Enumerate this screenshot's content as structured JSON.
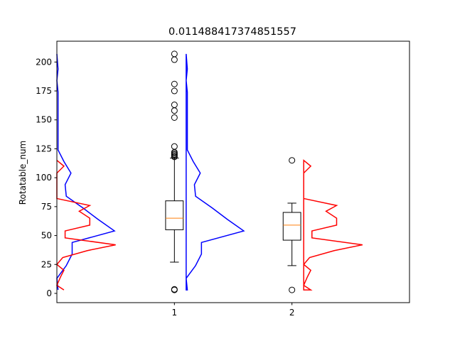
{
  "chart_data": {
    "type": "box",
    "title": "0.011488417374851557",
    "xlabel": "",
    "ylabel": "Rotatable_num",
    "xlim": [
      0,
      3
    ],
    "ylim": [
      -8,
      218
    ],
    "yticks": [
      0,
      25,
      50,
      75,
      100,
      125,
      150,
      175,
      200
    ],
    "categories": [
      "1",
      "2"
    ],
    "boxes": [
      {
        "name": "1",
        "position": 1,
        "whisker_low": 27,
        "q1": 55,
        "median": 65,
        "q3": 80,
        "whisker_high": 117,
        "fliers": [
          3,
          3.5,
          118,
          119,
          120,
          121,
          122,
          127,
          152,
          158,
          163,
          175,
          181,
          202,
          207
        ]
      },
      {
        "name": "2",
        "position": 2,
        "whisker_low": 24,
        "q1": 46,
        "median": 59,
        "q3": 70,
        "whisker_high": 78,
        "fliers": [
          3,
          115
        ]
      }
    ],
    "density_series": [
      {
        "color": "#0000ff",
        "anchor": 0,
        "direction": 1,
        "closed": false,
        "points": [
          [
            0.01,
            3
          ],
          [
            0.0,
            13
          ],
          [
            0.08,
            24
          ],
          [
            0.13,
            34
          ],
          [
            0.13,
            44
          ],
          [
            0.49,
            54
          ],
          [
            0.35,
            64
          ],
          [
            0.22,
            74
          ],
          [
            0.08,
            84
          ],
          [
            0.07,
            94
          ],
          [
            0.12,
            104
          ],
          [
            0.06,
            114
          ],
          [
            0.01,
            124
          ],
          [
            0.01,
            134
          ],
          [
            0.01,
            144
          ],
          [
            0.01,
            154
          ],
          [
            0.01,
            164
          ],
          [
            0.01,
            174
          ],
          [
            0.0,
            184
          ],
          [
            0.01,
            194
          ],
          [
            0.0,
            207
          ]
        ]
      },
      {
        "color": "#ff0000",
        "anchor": 0,
        "direction": 1,
        "closed": false,
        "points": [
          [
            0.06,
            3
          ],
          [
            0.0,
            7
          ],
          [
            0.03,
            14
          ],
          [
            0.06,
            20
          ],
          [
            0.0,
            25
          ],
          [
            0.05,
            31
          ],
          [
            0.26,
            37
          ],
          [
            0.5,
            42
          ],
          [
            0.07,
            48
          ],
          [
            0.07,
            54
          ],
          [
            0.28,
            59
          ],
          [
            0.28,
            65
          ],
          [
            0.19,
            71
          ],
          [
            0.28,
            76
          ],
          [
            0.0,
            82
          ],
          [
            0.0,
            104
          ],
          [
            0.06,
            110
          ],
          [
            0.0,
            115
          ]
        ]
      },
      {
        "color": "#0000ff",
        "anchor": 1.1,
        "direction": 1,
        "closed": true,
        "points": [
          [
            0.01,
            3
          ],
          [
            0.0,
            13
          ],
          [
            0.08,
            24
          ],
          [
            0.13,
            34
          ],
          [
            0.13,
            44
          ],
          [
            0.49,
            54
          ],
          [
            0.35,
            64
          ],
          [
            0.22,
            74
          ],
          [
            0.08,
            84
          ],
          [
            0.07,
            94
          ],
          [
            0.12,
            104
          ],
          [
            0.06,
            114
          ],
          [
            0.01,
            124
          ],
          [
            0.01,
            134
          ],
          [
            0.01,
            144
          ],
          [
            0.01,
            154
          ],
          [
            0.01,
            164
          ],
          [
            0.01,
            174
          ],
          [
            0.0,
            184
          ],
          [
            0.01,
            194
          ],
          [
            0.0,
            207
          ]
        ]
      },
      {
        "color": "#ff0000",
        "anchor": 2.1,
        "direction": 1,
        "closed": true,
        "points": [
          [
            0.06,
            3
          ],
          [
            0.0,
            7
          ],
          [
            0.03,
            14
          ],
          [
            0.06,
            20
          ],
          [
            0.0,
            25
          ],
          [
            0.05,
            31
          ],
          [
            0.26,
            37
          ],
          [
            0.5,
            42
          ],
          [
            0.07,
            48
          ],
          [
            0.07,
            54
          ],
          [
            0.28,
            59
          ],
          [
            0.28,
            65
          ],
          [
            0.19,
            71
          ],
          [
            0.28,
            76
          ],
          [
            0.0,
            82
          ],
          [
            0.0,
            104
          ],
          [
            0.06,
            110
          ],
          [
            0.0,
            115
          ]
        ]
      }
    ],
    "colors": {
      "box": "#000000",
      "median": "#ff7f0e"
    },
    "grid": false,
    "legend": false
  }
}
